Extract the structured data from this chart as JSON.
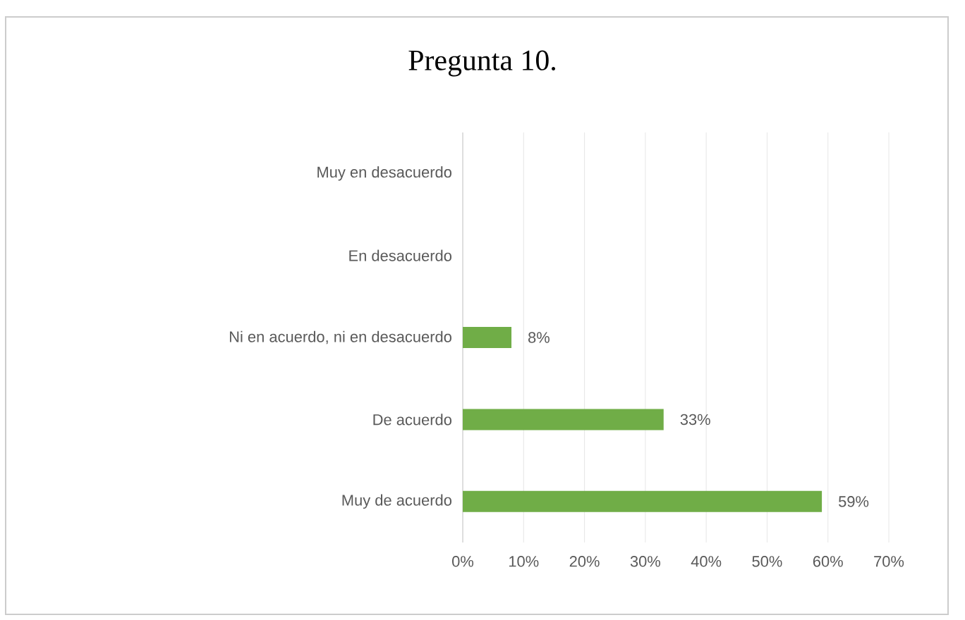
{
  "chart_data": {
    "type": "bar",
    "orientation": "horizontal",
    "title": "Pregunta 10.",
    "categories": [
      "Muy en desacuerdo",
      "En desacuerdo",
      "Ni en acuerdo, ni en desacuerdo",
      "De acuerdo",
      "Muy de acuerdo"
    ],
    "values": [
      0,
      0,
      8,
      33,
      59
    ],
    "value_labels": [
      null,
      null,
      "8%",
      "33%",
      "59%"
    ],
    "color": "#70ad47",
    "xlim": [
      0,
      70
    ],
    "xticks": [
      {
        "value": 0,
        "label": "0%"
      },
      {
        "value": 10,
        "label": "10%"
      },
      {
        "value": 20,
        "label": "20%"
      },
      {
        "value": 30,
        "label": "30%"
      },
      {
        "value": 40,
        "label": "40%"
      },
      {
        "value": 50,
        "label": "50%"
      },
      {
        "value": 60,
        "label": "60%"
      },
      {
        "value": 70,
        "label": "70%"
      }
    ],
    "grid": "x"
  }
}
